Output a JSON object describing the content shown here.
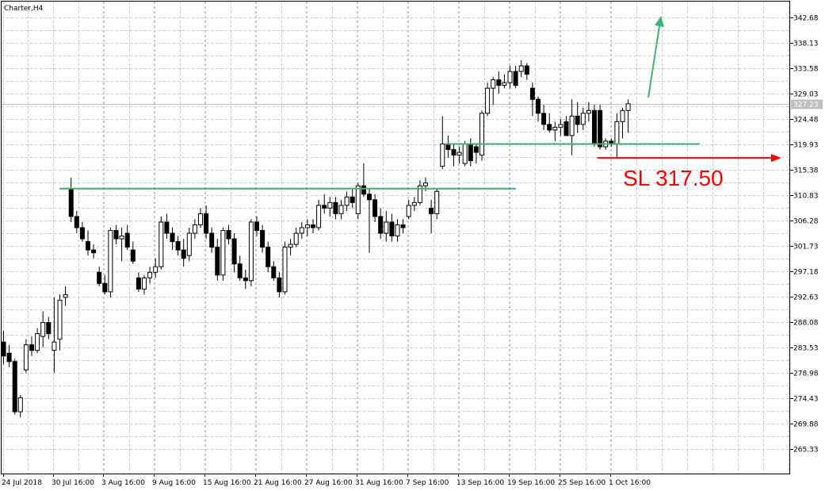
{
  "chart_data": {
    "type": "candlestick",
    "title": "Charter,H4",
    "current_price": "327.23",
    "ylim": [
      261.0,
      346.0
    ],
    "y_ticks": [
      "342.68",
      "338.13",
      "333.58",
      "329.03",
      "324.48",
      "319.93",
      "315.38",
      "310.83",
      "306.28",
      "301.73",
      "297.18",
      "292.63",
      "288.08",
      "283.53",
      "278.98",
      "274.43",
      "269.88",
      "265.33"
    ],
    "x_ticks": [
      "24 Jul 2018",
      "30 Jul 16:00",
      "3 Aug 16:00",
      "9 Aug 16:00",
      "15 Aug 16:00",
      "21 Aug 16:00",
      "27 Aug 16:00",
      "31 Aug 16:00",
      "7 Sep 16:00",
      "13 Sep 16:00",
      "19 Sep 16:00",
      "25 Sep 16:00",
      "1 Oct 16:00"
    ],
    "grid": true,
    "candles": [
      {
        "o": 284.5,
        "h": 286.5,
        "l": 280.5,
        "c": 282.0
      },
      {
        "o": 282.5,
        "h": 284.0,
        "l": 280.0,
        "c": 281.0
      },
      {
        "o": 281.0,
        "h": 281.5,
        "l": 271.5,
        "c": 272.0
      },
      {
        "o": 272.0,
        "h": 275.0,
        "l": 271.0,
        "c": 274.5
      },
      {
        "o": 279.5,
        "h": 285.0,
        "l": 279.0,
        "c": 284.0
      },
      {
        "o": 284.0,
        "h": 285.5,
        "l": 282.0,
        "c": 283.0
      },
      {
        "o": 283.0,
        "h": 287.0,
        "l": 282.5,
        "c": 286.0
      },
      {
        "o": 285.5,
        "h": 290.0,
        "l": 283.5,
        "c": 288.0
      },
      {
        "o": 288.0,
        "h": 289.0,
        "l": 285.0,
        "c": 286.0
      },
      {
        "o": 283.0,
        "h": 292.5,
        "l": 279.0,
        "c": 284.5
      },
      {
        "o": 285.0,
        "h": 293.0,
        "l": 283.0,
        "c": 292.0
      },
      {
        "o": 292.5,
        "h": 294.5,
        "l": 291.0,
        "c": 293.0
      },
      {
        "o": 312.0,
        "h": 314.0,
        "l": 306.0,
        "c": 307.0
      },
      {
        "o": 307.0,
        "h": 308.0,
        "l": 304.0,
        "c": 305.0
      },
      {
        "o": 305.0,
        "h": 306.0,
        "l": 302.5,
        "c": 303.0
      },
      {
        "o": 302.5,
        "h": 304.5,
        "l": 300.0,
        "c": 301.0
      },
      {
        "o": 301.0,
        "h": 302.0,
        "l": 299.5,
        "c": 300.5
      },
      {
        "o": 297.0,
        "h": 298.0,
        "l": 294.5,
        "c": 295.0
      },
      {
        "o": 295.0,
        "h": 296.5,
        "l": 293.0,
        "c": 293.5
      },
      {
        "o": 293.5,
        "h": 305.0,
        "l": 292.5,
        "c": 304.5
      },
      {
        "o": 304.5,
        "h": 305.5,
        "l": 302.0,
        "c": 303.0
      },
      {
        "o": 303.0,
        "h": 305.0,
        "l": 299.0,
        "c": 303.5
      },
      {
        "o": 304.0,
        "h": 305.5,
        "l": 301.0,
        "c": 301.5
      },
      {
        "o": 301.0,
        "h": 302.5,
        "l": 298.5,
        "c": 299.0
      },
      {
        "o": 296.0,
        "h": 297.0,
        "l": 293.5,
        "c": 294.0
      },
      {
        "o": 294.0,
        "h": 296.5,
        "l": 293.0,
        "c": 296.0
      },
      {
        "o": 296.0,
        "h": 298.0,
        "l": 295.0,
        "c": 297.0
      },
      {
        "o": 297.0,
        "h": 299.5,
        "l": 296.0,
        "c": 298.0
      },
      {
        "o": 298.0,
        "h": 307.0,
        "l": 297.5,
        "c": 306.0
      },
      {
        "o": 306.0,
        "h": 307.5,
        "l": 303.0,
        "c": 304.0
      },
      {
        "o": 304.0,
        "h": 305.0,
        "l": 301.0,
        "c": 302.5
      },
      {
        "o": 302.5,
        "h": 303.5,
        "l": 300.0,
        "c": 301.0
      },
      {
        "o": 301.0,
        "h": 303.0,
        "l": 298.0,
        "c": 299.5
      },
      {
        "o": 300.0,
        "h": 305.0,
        "l": 299.0,
        "c": 304.0
      },
      {
        "o": 304.0,
        "h": 306.5,
        "l": 303.0,
        "c": 305.5
      },
      {
        "o": 305.5,
        "h": 308.5,
        "l": 305.0,
        "c": 307.5
      },
      {
        "o": 307.5,
        "h": 309.0,
        "l": 303.0,
        "c": 304.0
      },
      {
        "o": 304.0,
        "h": 305.0,
        "l": 300.5,
        "c": 301.5
      },
      {
        "o": 301.5,
        "h": 303.0,
        "l": 295.5,
        "c": 296.5
      },
      {
        "o": 296.5,
        "h": 305.0,
        "l": 295.5,
        "c": 304.5
      },
      {
        "o": 304.5,
        "h": 305.5,
        "l": 302.0,
        "c": 303.0
      },
      {
        "o": 303.0,
        "h": 304.0,
        "l": 297.0,
        "c": 298.5
      },
      {
        "o": 298.5,
        "h": 300.0,
        "l": 295.5,
        "c": 296.0
      },
      {
        "o": 296.0,
        "h": 297.5,
        "l": 294.0,
        "c": 295.5
      },
      {
        "o": 295.5,
        "h": 306.5,
        "l": 294.5,
        "c": 306.0
      },
      {
        "o": 306.0,
        "h": 307.0,
        "l": 303.5,
        "c": 304.5
      },
      {
        "o": 304.5,
        "h": 305.5,
        "l": 300.5,
        "c": 301.5
      },
      {
        "o": 301.5,
        "h": 302.5,
        "l": 297.0,
        "c": 298.0
      },
      {
        "o": 298.0,
        "h": 299.0,
        "l": 295.5,
        "c": 296.0
      },
      {
        "o": 296.0,
        "h": 297.0,
        "l": 292.5,
        "c": 293.5
      },
      {
        "o": 293.5,
        "h": 302.5,
        "l": 293.0,
        "c": 301.5
      },
      {
        "o": 301.5,
        "h": 303.0,
        "l": 300.0,
        "c": 302.0
      },
      {
        "o": 302.0,
        "h": 305.0,
        "l": 301.5,
        "c": 304.0
      },
      {
        "o": 304.0,
        "h": 306.0,
        "l": 303.0,
        "c": 305.0
      },
      {
        "o": 305.0,
        "h": 306.5,
        "l": 303.5,
        "c": 305.5
      },
      {
        "o": 305.5,
        "h": 306.5,
        "l": 304.0,
        "c": 305.0
      },
      {
        "o": 305.0,
        "h": 310.0,
        "l": 304.5,
        "c": 309.0
      },
      {
        "o": 309.0,
        "h": 311.0,
        "l": 307.5,
        "c": 308.5
      },
      {
        "o": 308.5,
        "h": 310.5,
        "l": 307.0,
        "c": 309.5
      },
      {
        "o": 309.5,
        "h": 310.5,
        "l": 306.5,
        "c": 307.5
      },
      {
        "o": 307.5,
        "h": 310.0,
        "l": 306.5,
        "c": 309.0
      },
      {
        "o": 309.0,
        "h": 311.5,
        "l": 308.0,
        "c": 310.5
      },
      {
        "o": 310.5,
        "h": 312.0,
        "l": 308.5,
        "c": 309.5
      },
      {
        "o": 307.5,
        "h": 313.0,
        "l": 306.5,
        "c": 312.5
      },
      {
        "o": 312.5,
        "h": 316.5,
        "l": 310.5,
        "c": 311.0
      },
      {
        "o": 311.0,
        "h": 312.0,
        "l": 300.5,
        "c": 310.0
      },
      {
        "o": 310.0,
        "h": 311.0,
        "l": 306.0,
        "c": 307.0
      },
      {
        "o": 307.0,
        "h": 308.5,
        "l": 303.0,
        "c": 304.0
      },
      {
        "o": 304.0,
        "h": 308.0,
        "l": 302.5,
        "c": 306.0
      },
      {
        "o": 306.0,
        "h": 307.5,
        "l": 302.5,
        "c": 303.5
      },
      {
        "o": 303.5,
        "h": 306.5,
        "l": 302.5,
        "c": 305.5
      },
      {
        "o": 305.5,
        "h": 306.5,
        "l": 304.0,
        "c": 305.0
      },
      {
        "o": 307.0,
        "h": 310.0,
        "l": 306.5,
        "c": 309.0
      },
      {
        "o": 309.0,
        "h": 310.5,
        "l": 308.0,
        "c": 309.5
      },
      {
        "o": 309.5,
        "h": 313.5,
        "l": 309.0,
        "c": 312.5
      },
      {
        "o": 312.5,
        "h": 314.0,
        "l": 311.5,
        "c": 313.0
      },
      {
        "o": 308.5,
        "h": 310.0,
        "l": 304.0,
        "c": 307.5
      },
      {
        "o": 307.5,
        "h": 312.0,
        "l": 306.5,
        "c": 311.5
      },
      {
        "o": 316.0,
        "h": 325.0,
        "l": 315.5,
        "c": 320.0
      },
      {
        "o": 320.0,
        "h": 321.5,
        "l": 317.5,
        "c": 319.0
      },
      {
        "o": 319.0,
        "h": 320.0,
        "l": 316.0,
        "c": 318.0
      },
      {
        "o": 318.0,
        "h": 319.5,
        "l": 316.5,
        "c": 318.5
      },
      {
        "o": 316.5,
        "h": 320.5,
        "l": 316.0,
        "c": 320.0
      },
      {
        "o": 320.0,
        "h": 321.0,
        "l": 316.0,
        "c": 317.0
      },
      {
        "o": 319.5,
        "h": 320.0,
        "l": 316.5,
        "c": 318.5
      },
      {
        "o": 318.0,
        "h": 326.0,
        "l": 317.0,
        "c": 325.5
      },
      {
        "o": 325.5,
        "h": 331.0,
        "l": 325.0,
        "c": 330.0
      },
      {
        "o": 330.0,
        "h": 332.0,
        "l": 327.0,
        "c": 331.5
      },
      {
        "o": 331.5,
        "h": 333.0,
        "l": 329.0,
        "c": 330.5
      },
      {
        "o": 330.5,
        "h": 332.5,
        "l": 330.0,
        "c": 331.0
      },
      {
        "o": 331.0,
        "h": 334.0,
        "l": 330.0,
        "c": 333.0
      },
      {
        "o": 333.0,
        "h": 334.0,
        "l": 330.0,
        "c": 330.5
      },
      {
        "o": 333.0,
        "h": 335.0,
        "l": 332.0,
        "c": 334.0
      },
      {
        "o": 334.0,
        "h": 334.5,
        "l": 331.5,
        "c": 332.5
      },
      {
        "o": 330.0,
        "h": 331.0,
        "l": 325.0,
        "c": 328.0
      },
      {
        "o": 328.0,
        "h": 328.5,
        "l": 324.0,
        "c": 325.5
      },
      {
        "o": 325.5,
        "h": 327.0,
        "l": 322.5,
        "c": 323.5
      },
      {
        "o": 323.5,
        "h": 325.5,
        "l": 322.0,
        "c": 322.5
      },
      {
        "o": 322.5,
        "h": 324.0,
        "l": 320.5,
        "c": 323.0
      },
      {
        "o": 323.0,
        "h": 324.5,
        "l": 321.5,
        "c": 323.5
      },
      {
        "o": 324.0,
        "h": 325.0,
        "l": 321.5,
        "c": 321.5
      },
      {
        "o": 321.5,
        "h": 328.0,
        "l": 318.0,
        "c": 325.0
      },
      {
        "o": 325.0,
        "h": 327.5,
        "l": 322.0,
        "c": 323.5
      },
      {
        "o": 323.5,
        "h": 326.5,
        "l": 322.5,
        "c": 325.5
      },
      {
        "o": 325.5,
        "h": 327.5,
        "l": 324.0,
        "c": 326.0
      },
      {
        "o": 326.0,
        "h": 327.0,
        "l": 319.5,
        "c": 320.0
      },
      {
        "o": 326.0,
        "h": 327.0,
        "l": 319.0,
        "c": 319.5
      },
      {
        "o": 319.5,
        "h": 321.0,
        "l": 319.0,
        "c": 320.5
      },
      {
        "o": 320.5,
        "h": 321.0,
        "l": 319.5,
        "c": 320.0
      },
      {
        "o": 320.0,
        "h": 325.5,
        "l": 317.5,
        "c": 324.0
      },
      {
        "o": 324.0,
        "h": 326.5,
        "l": 321.0,
        "c": 326.0
      },
      {
        "o": 326.0,
        "h": 328.0,
        "l": 322.0,
        "c": 327.2
      }
    ],
    "annotations": {
      "support_line_1": {
        "value": 312.0,
        "color": "#3cb371"
      },
      "support_line_2": {
        "value": 320.0,
        "color": "#3cb371"
      },
      "stop_loss_label": "SL 317.50",
      "stop_loss_value": 317.5,
      "stop_loss_color": "#ff0000",
      "target_arrow_color": "#3cb371"
    }
  }
}
